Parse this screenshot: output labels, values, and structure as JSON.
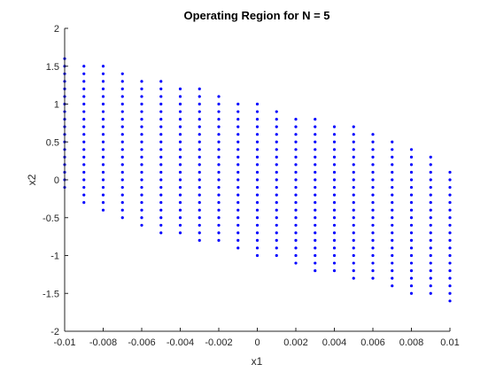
{
  "chart_data": {
    "type": "scatter",
    "title": "Operating Region for N = 5",
    "xlabel": "x1",
    "ylabel": "x2",
    "xlim": [
      -0.01,
      0.01
    ],
    "ylim": [
      -2,
      2
    ],
    "xticks": [
      -0.01,
      -0.008,
      -0.006,
      -0.004,
      -0.002,
      0,
      0.002,
      0.004,
      0.006,
      0.008,
      0.01
    ],
    "xtick_labels": [
      "-0.01",
      "-0.008",
      "-0.006",
      "-0.004",
      "-0.002",
      "0",
      "0.002",
      "0.004",
      "0.006",
      "0.008",
      "0.01"
    ],
    "yticks": [
      -2,
      -1.5,
      -1,
      -0.5,
      0,
      0.5,
      1,
      1.5,
      2
    ],
    "ytick_labels": [
      "-2",
      "-1.5",
      "-1",
      "-0.5",
      "0",
      "0.5",
      "1",
      "1.5",
      "2"
    ],
    "grid": false,
    "marker_color": "#0000ff",
    "y_step": 0.1,
    "columns": [
      {
        "x": -0.01,
        "y_min": -0.1,
        "y_max": 1.6
      },
      {
        "x": -0.009,
        "y_min": -0.3,
        "y_max": 1.5
      },
      {
        "x": -0.008,
        "y_min": -0.4,
        "y_max": 1.5
      },
      {
        "x": -0.007,
        "y_min": -0.5,
        "y_max": 1.4
      },
      {
        "x": -0.006,
        "y_min": -0.6,
        "y_max": 1.3
      },
      {
        "x": -0.005,
        "y_min": -0.7,
        "y_max": 1.3
      },
      {
        "x": -0.004,
        "y_min": -0.7,
        "y_max": 1.2
      },
      {
        "x": -0.003,
        "y_min": -0.8,
        "y_max": 1.2
      },
      {
        "x": -0.002,
        "y_min": -0.8,
        "y_max": 1.1
      },
      {
        "x": -0.001,
        "y_min": -0.9,
        "y_max": 1.0
      },
      {
        "x": 0.0,
        "y_min": -1.0,
        "y_max": 1.0
      },
      {
        "x": 0.001,
        "y_min": -1.0,
        "y_max": 0.9
      },
      {
        "x": 0.002,
        "y_min": -1.1,
        "y_max": 0.8
      },
      {
        "x": 0.003,
        "y_min": -1.2,
        "y_max": 0.8
      },
      {
        "x": 0.004,
        "y_min": -1.2,
        "y_max": 0.7
      },
      {
        "x": 0.005,
        "y_min": -1.3,
        "y_max": 0.7
      },
      {
        "x": 0.006,
        "y_min": -1.3,
        "y_max": 0.6
      },
      {
        "x": 0.007,
        "y_min": -1.4,
        "y_max": 0.5
      },
      {
        "x": 0.008,
        "y_min": -1.5,
        "y_max": 0.4
      },
      {
        "x": 0.009,
        "y_min": -1.5,
        "y_max": 0.3
      },
      {
        "x": 0.01,
        "y_min": -1.6,
        "y_max": 0.1
      }
    ]
  }
}
